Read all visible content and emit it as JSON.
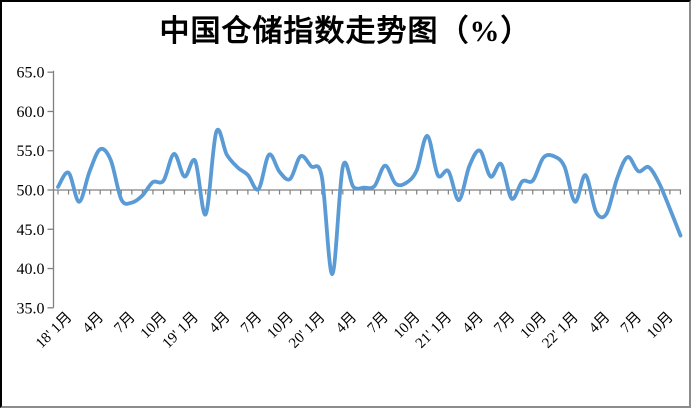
{
  "title": "中国仓储指数走势图（%）",
  "colors": {
    "line": "#5B9BD5",
    "axis": "#808080",
    "text": "#000000"
  },
  "y_axis": {
    "tick_labels": [
      "65.0",
      "60.0",
      "55.0",
      "50.0",
      "45.0",
      "40.0",
      "35.0"
    ],
    "min": 35.0,
    "max": 65.0,
    "step": 5.0,
    "axis_cross_value": 50.0
  },
  "x_axis": {
    "tick_labels": [
      "18' 1月",
      "4月",
      "7月",
      "10月",
      "19' 1月",
      "4月",
      "7月",
      "10月",
      "20' 1月",
      "4月",
      "7月",
      "10月",
      "21' 1月",
      "4月",
      "7月",
      "10月",
      "22' 1月",
      "4月",
      "7月",
      "10月"
    ],
    "label_start_month_index": 1,
    "label_every": 3
  },
  "chart_data": {
    "type": "line",
    "series_name": "中国仓储指数",
    "unit": "%",
    "title": "中国仓储指数走势图（%）",
    "ylim": [
      35.0,
      65.0
    ],
    "grid": false,
    "legend": "none",
    "smoothed": true,
    "months": [
      "17'12",
      "18'1",
      "18'2",
      "18'3",
      "18'4",
      "18'5",
      "18'6",
      "18'7",
      "18'8",
      "18'9",
      "18'10",
      "18'11",
      "18'12",
      "19'1",
      "19'2",
      "19'3",
      "19'4",
      "19'5",
      "19'6",
      "19'7",
      "19'8",
      "19'9",
      "19'10",
      "19'11",
      "19'12",
      "20'1",
      "20'2",
      "20'3",
      "20'4",
      "20'5",
      "20'6",
      "20'7",
      "20'8",
      "20'9",
      "20'10",
      "20'11",
      "20'12",
      "21'1",
      "21'2",
      "21'3",
      "21'4",
      "21'5",
      "21'6",
      "21'7",
      "21'8",
      "21'9",
      "21'10",
      "21'11",
      "21'12",
      "22'1",
      "22'2",
      "22'3",
      "22'4",
      "22'5",
      "22'6",
      "22'7",
      "22'8",
      "22'9",
      "22'10",
      "22'11"
    ],
    "values": [
      50.4,
      52.2,
      48.5,
      52.4,
      55.2,
      53.8,
      48.8,
      48.4,
      49.3,
      51.0,
      51.2,
      54.6,
      51.7,
      53.7,
      46.9,
      57.4,
      54.5,
      52.9,
      51.9,
      50.1,
      54.5,
      52.3,
      51.4,
      54.3,
      53.0,
      51.7,
      39.3,
      53.0,
      50.4,
      50.3,
      50.5,
      53.1,
      50.8,
      50.9,
      52.5,
      56.9,
      51.9,
      52.4,
      48.7,
      53.1,
      55.0,
      51.7,
      53.3,
      48.9,
      51.1,
      51.2,
      54.1,
      54.3,
      53.0,
      48.5,
      51.9,
      47.2,
      47.0,
      51.5,
      54.2,
      52.4,
      52.9,
      50.8,
      47.6,
      44.2
    ]
  }
}
